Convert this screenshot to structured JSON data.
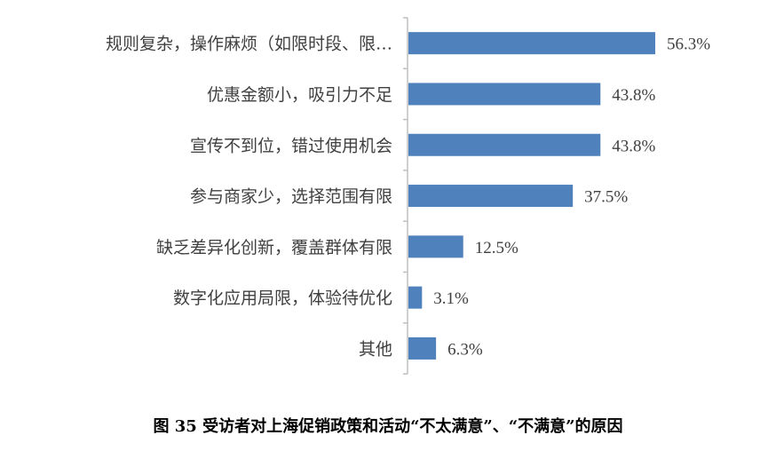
{
  "chart_data": {
    "type": "bar",
    "orientation": "horizontal",
    "categories": [
      "规则复杂，操作麻烦（如限时段、限…",
      "优惠金额小，吸引力不足",
      "宣传不到位，错过使用机会",
      "参与商家少，选择范围有限",
      "缺乏差异化创新，覆盖群体有限",
      "数字化应用局限，体验待优化",
      "其他"
    ],
    "values": [
      56.3,
      43.8,
      43.8,
      37.5,
      12.5,
      3.1,
      6.3
    ],
    "value_labels": [
      "56.3%",
      "43.8%",
      "43.8%",
      "37.5%",
      "12.5%",
      "3.1%",
      "6.3%"
    ],
    "title": "图 35  受访者对上海促销政策和活动“不太满意”、“不满意”的原因",
    "xlim": [
      0,
      80
    ],
    "grid": false,
    "legend": "none",
    "bar_color": "#4F81BD"
  }
}
